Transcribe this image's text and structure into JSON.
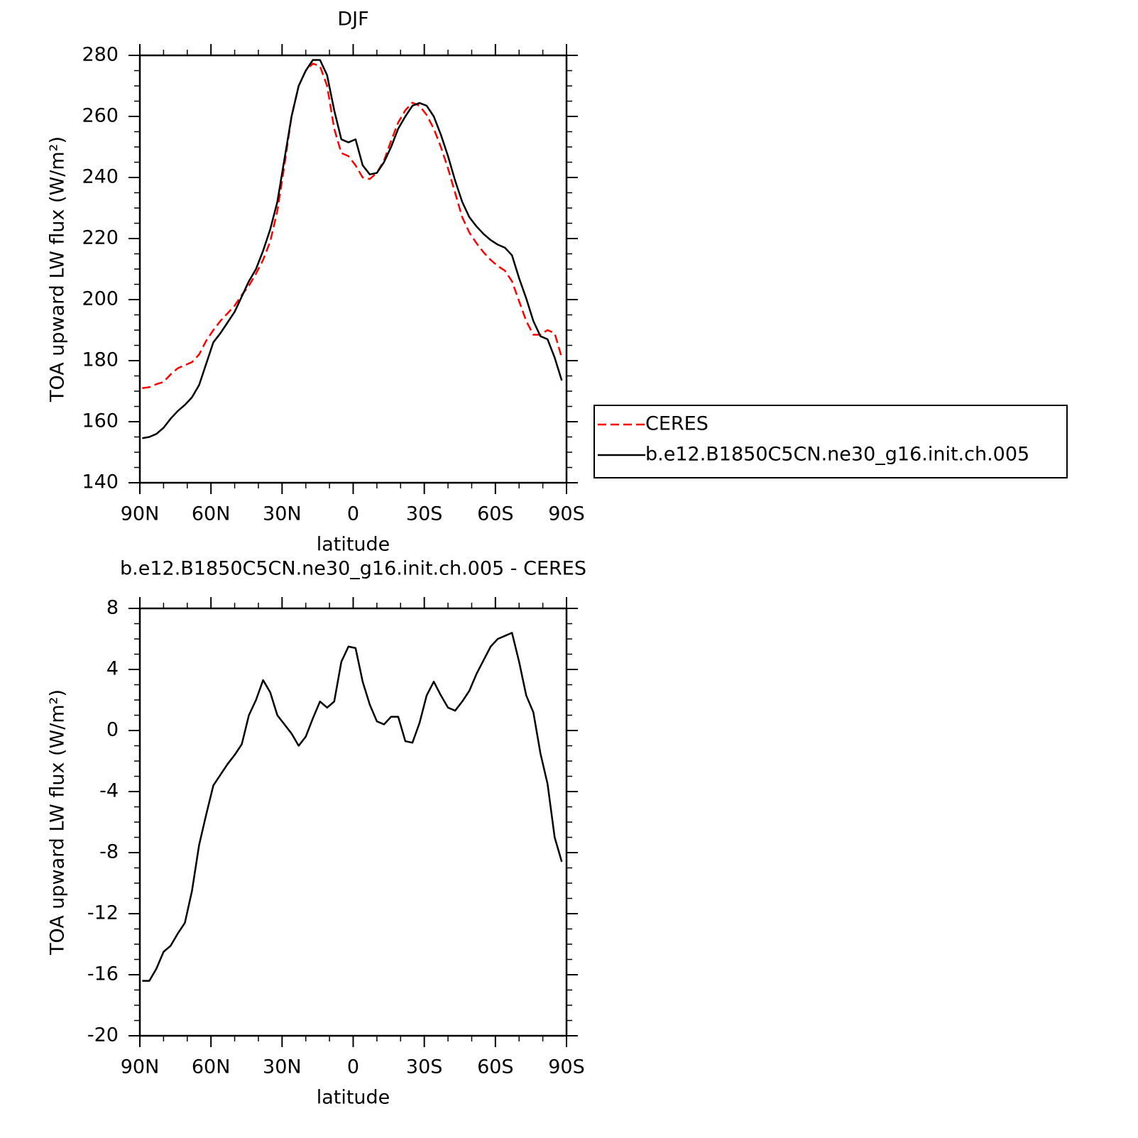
{
  "chart_data": [
    {
      "type": "line",
      "title": "DJF",
      "x_label": "latitude",
      "y_label": "TOA upward LW flux (W/m²)",
      "x": [
        89,
        86,
        83,
        80,
        77,
        74,
        71,
        68,
        65,
        62,
        59,
        56,
        53,
        50,
        47,
        44,
        41,
        38,
        35,
        32,
        29,
        26,
        23,
        20,
        17,
        14,
        11,
        8,
        5,
        2,
        -1,
        -4,
        -7,
        -10,
        -13,
        -16,
        -19,
        -22,
        -25,
        -28,
        -31,
        -34,
        -37,
        -40,
        -43,
        -46,
        -49,
        -52,
        -55,
        -58,
        -61,
        -64,
        -67,
        -70,
        -73,
        -76,
        -79,
        -82,
        -85,
        -88
      ],
      "xlim": [
        90,
        -90
      ],
      "xticks": [
        {
          "value": 90,
          "label": "90N"
        },
        {
          "value": 60,
          "label": "60N"
        },
        {
          "value": 30,
          "label": "30N"
        },
        0,
        {
          "value": -30,
          "label": "30S"
        },
        {
          "value": -60,
          "label": "60S"
        },
        {
          "value": -90,
          "label": "90S"
        }
      ],
      "ylim": [
        140,
        280
      ],
      "yticks": [
        140,
        160,
        180,
        200,
        220,
        240,
        260,
        280
      ],
      "legend": "outside-right",
      "series": [
        {
          "name": "CERES",
          "color": "#ff0000",
          "line_style": "dashed",
          "values": [
            171,
            171.3,
            172.3,
            173,
            175.5,
            177.5,
            178.5,
            179.5,
            182,
            186.5,
            190,
            193,
            195.5,
            198,
            201.5,
            204.5,
            208.5,
            213,
            219,
            229,
            244,
            260,
            270,
            275,
            277.3,
            276.5,
            270,
            256,
            248,
            247,
            244,
            240,
            239.5,
            241.5,
            245.5,
            252,
            258,
            262,
            264.5,
            263.5,
            260.5,
            256,
            250,
            243,
            235,
            227,
            222,
            218.5,
            215.5,
            213,
            211,
            209.5,
            206,
            199.5,
            193,
            188.5,
            188.5,
            190,
            189,
            181
          ]
        },
        {
          "name": "b.e12.B1850C5CN.ne30_g16.init.ch.005",
          "color": "#000000",
          "line_style": "solid",
          "values": [
            154.6,
            155,
            156,
            158,
            161,
            163.5,
            165.5,
            168,
            172,
            179,
            186,
            189,
            192.5,
            196,
            201,
            206,
            210,
            216,
            223,
            232,
            246,
            260,
            270,
            275,
            278.5,
            278.5,
            273.5,
            262,
            252.5,
            251.5,
            252.5,
            244,
            241,
            241.5,
            245,
            250,
            256,
            260,
            263.5,
            264.4,
            263.5,
            260,
            254,
            247,
            239,
            232,
            227,
            224,
            221.5,
            219.5,
            218,
            217,
            214.5,
            207,
            200.4,
            193,
            188,
            187,
            181,
            173.5
          ]
        }
      ]
    },
    {
      "type": "line",
      "title": "b.e12.B1850C5CN.ne30_g16.init.ch.005 - CERES",
      "x_label": "latitude",
      "y_label": "TOA upward LW flux (W/m²)",
      "x": [
        89,
        86,
        83,
        80,
        77,
        74,
        71,
        68,
        65,
        62,
        59,
        56,
        53,
        50,
        47,
        44,
        41,
        38,
        35,
        32,
        29,
        26,
        23,
        20,
        17,
        14,
        11,
        8,
        5,
        2,
        -1,
        -4,
        -7,
        -10,
        -13,
        -16,
        -19,
        -22,
        -25,
        -28,
        -31,
        -34,
        -37,
        -40,
        -43,
        -46,
        -49,
        -52,
        -55,
        -58,
        -61,
        -64,
        -67,
        -70,
        -73,
        -76,
        -79,
        -82,
        -85,
        -88
      ],
      "xlim": [
        90,
        -90
      ],
      "xticks": [
        {
          "value": 90,
          "label": "90N"
        },
        {
          "value": 60,
          "label": "60N"
        },
        {
          "value": 30,
          "label": "30N"
        },
        0,
        {
          "value": -30,
          "label": "30S"
        },
        {
          "value": -60,
          "label": "60S"
        },
        {
          "value": -90,
          "label": "90S"
        }
      ],
      "ylim": [
        -20,
        8
      ],
      "yticks": [
        -20,
        -16,
        -12,
        -8,
        -4,
        0,
        4,
        8
      ],
      "series": [
        {
          "color": "#000000",
          "line_style": "solid",
          "values": [
            -16.4,
            -16.4,
            -15.6,
            -14.5,
            -14.1,
            -13.3,
            -12.6,
            -10.5,
            -7.5,
            -5.5,
            -3.6,
            -2.9,
            -2.2,
            -1.6,
            -0.9,
            1.0,
            2.0,
            3.3,
            2.5,
            1.0,
            0.4,
            -0.2,
            -1.0,
            -0.4,
            0.8,
            1.9,
            1.5,
            1.9,
            4.5,
            5.5,
            5.4,
            3.2,
            1.7,
            0.6,
            0.4,
            0.9,
            0.9,
            -0.7,
            -0.8,
            0.5,
            2.3,
            3.2,
            2.3,
            1.5,
            1.3,
            1.9,
            2.6,
            3.7,
            4.6,
            5.5,
            6.0,
            6.2,
            6.4,
            4.5,
            2.3,
            1.2,
            -1.5,
            -3.5,
            -7.0,
            -8.6
          ]
        }
      ]
    }
  ]
}
